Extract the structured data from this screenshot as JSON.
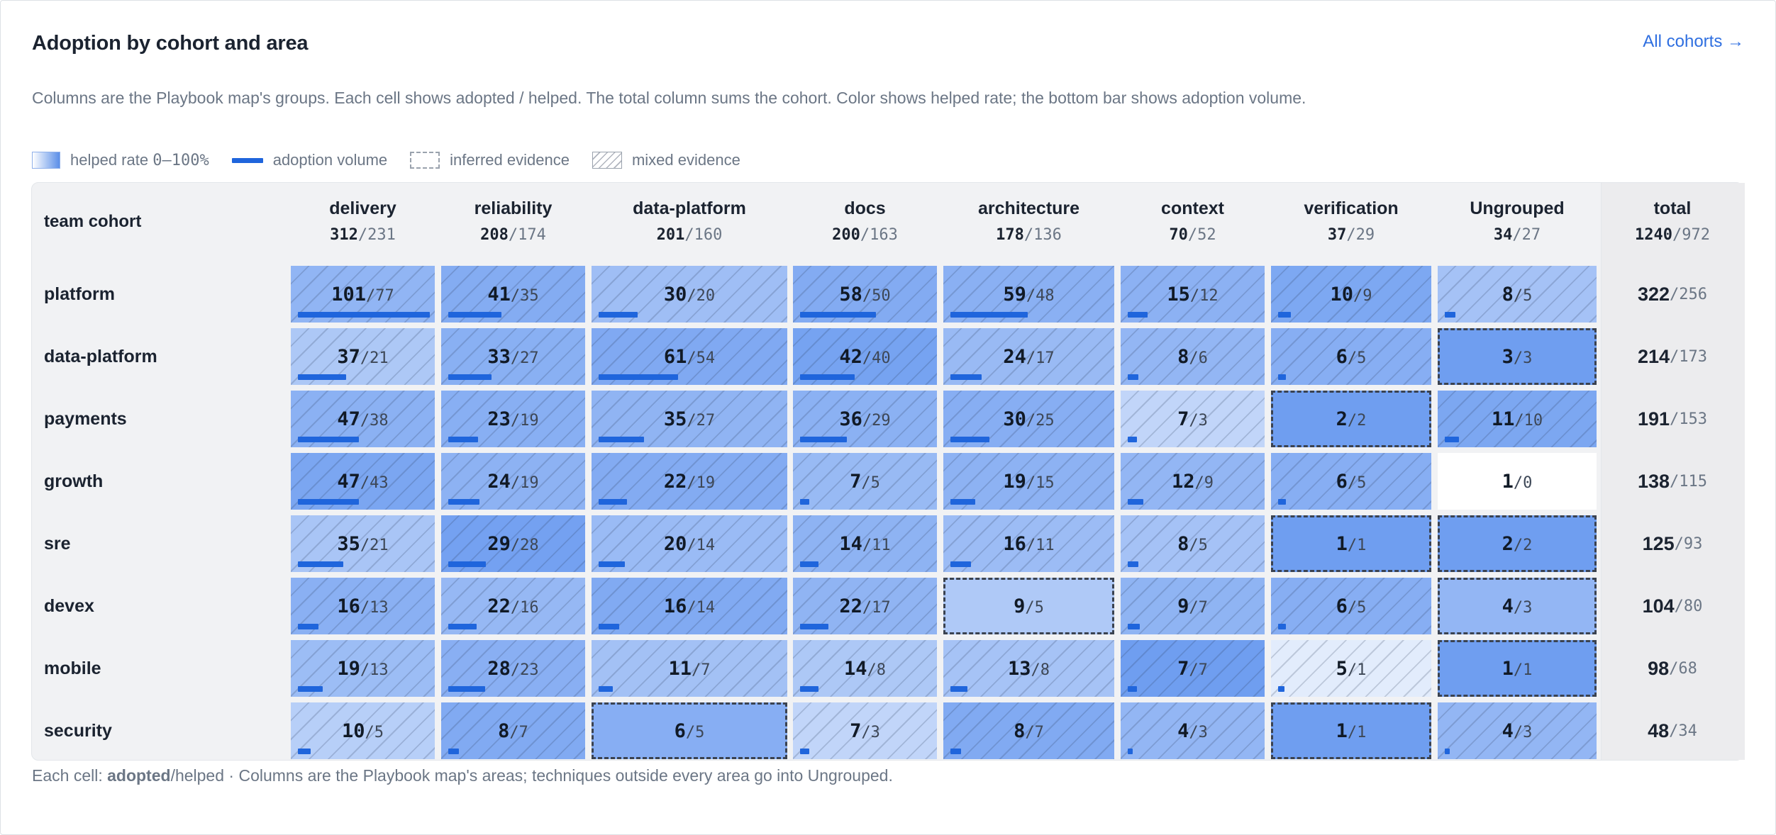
{
  "header": {
    "title": "Adoption by cohort and area",
    "all_link": "All cohorts →",
    "description": "Columns are the Playbook map's groups. Each cell shows adopted / helped. The total column sums the cohort. Color shows helped rate; the bottom bar shows adoption volume."
  },
  "legend": {
    "helped_rate": "helped rate",
    "helped_rate_range": "0–100%",
    "adoption_volume": "adoption volume",
    "inferred": "inferred evidence",
    "mixed": "mixed evidence"
  },
  "colors": {
    "accent": "#1f65dc",
    "link": "#2f6fe0",
    "cell_high": "#6f9ef0",
    "cell_low": "#ffffff"
  },
  "table": {
    "cohort_header": "team cohort",
    "total_header": "total",
    "total_adopted": "1240",
    "total_helped": "/972",
    "columns": [
      {
        "name": "delivery",
        "adopted": "312",
        "helped": "/231"
      },
      {
        "name": "reliability",
        "adopted": "208",
        "helped": "/174"
      },
      {
        "name": "data-platform",
        "adopted": "201",
        "helped": "/160"
      },
      {
        "name": "docs",
        "adopted": "200",
        "helped": "/163"
      },
      {
        "name": "architecture",
        "adopted": "178",
        "helped": "/136"
      },
      {
        "name": "context",
        "adopted": "70",
        "helped": "/52"
      },
      {
        "name": "verification",
        "adopted": "37",
        "helped": "/29"
      },
      {
        "name": "Ungrouped",
        "adopted": "34",
        "helped": "/27"
      }
    ],
    "rows": [
      {
        "cohort": "platform",
        "total_adopted": "322",
        "total_helped": "/256",
        "cells": [
          {
            "adopted": "101",
            "helped": "/77",
            "ev": "mixed"
          },
          {
            "adopted": "41",
            "helped": "/35",
            "ev": "mixed"
          },
          {
            "adopted": "30",
            "helped": "/20",
            "ev": "mixed"
          },
          {
            "adopted": "58",
            "helped": "/50",
            "ev": "mixed"
          },
          {
            "adopted": "59",
            "helped": "/48",
            "ev": "mixed"
          },
          {
            "adopted": "15",
            "helped": "/12",
            "ev": "mixed"
          },
          {
            "adopted": "10",
            "helped": "/9",
            "ev": "mixed"
          },
          {
            "adopted": "8",
            "helped": "/5",
            "ev": "mixed"
          }
        ]
      },
      {
        "cohort": "data-platform",
        "total_adopted": "214",
        "total_helped": "/173",
        "cells": [
          {
            "adopted": "37",
            "helped": "/21",
            "ev": "mixed"
          },
          {
            "adopted": "33",
            "helped": "/27",
            "ev": "mixed"
          },
          {
            "adopted": "61",
            "helped": "/54",
            "ev": "mixed"
          },
          {
            "adopted": "42",
            "helped": "/40",
            "ev": "mixed"
          },
          {
            "adopted": "24",
            "helped": "/17",
            "ev": "mixed"
          },
          {
            "adopted": "8",
            "helped": "/6",
            "ev": "mixed"
          },
          {
            "adopted": "6",
            "helped": "/5",
            "ev": "mixed"
          },
          {
            "adopted": "3",
            "helped": "/3",
            "ev": "inferred"
          }
        ]
      },
      {
        "cohort": "payments",
        "total_adopted": "191",
        "total_helped": "/153",
        "cells": [
          {
            "adopted": "47",
            "helped": "/38",
            "ev": "mixed"
          },
          {
            "adopted": "23",
            "helped": "/19",
            "ev": "mixed"
          },
          {
            "adopted": "35",
            "helped": "/27",
            "ev": "mixed"
          },
          {
            "adopted": "36",
            "helped": "/29",
            "ev": "mixed"
          },
          {
            "adopted": "30",
            "helped": "/25",
            "ev": "mixed"
          },
          {
            "adopted": "7",
            "helped": "/3",
            "ev": "mixed"
          },
          {
            "adopted": "2",
            "helped": "/2",
            "ev": "inferred"
          },
          {
            "adopted": "11",
            "helped": "/10",
            "ev": "mixed"
          }
        ]
      },
      {
        "cohort": "growth",
        "total_adopted": "138",
        "total_helped": "/115",
        "cells": [
          {
            "adopted": "47",
            "helped": "/43",
            "ev": "mixed"
          },
          {
            "adopted": "24",
            "helped": "/19",
            "ev": "mixed"
          },
          {
            "adopted": "22",
            "helped": "/19",
            "ev": "mixed"
          },
          {
            "adopted": "7",
            "helped": "/5",
            "ev": "mixed"
          },
          {
            "adopted": "19",
            "helped": "/15",
            "ev": "mixed"
          },
          {
            "adopted": "12",
            "helped": "/9",
            "ev": "mixed"
          },
          {
            "adopted": "6",
            "helped": "/5",
            "ev": "mixed"
          },
          {
            "adopted": "1",
            "helped": "/0",
            "ev": "direct"
          }
        ]
      },
      {
        "cohort": "sre",
        "total_adopted": "125",
        "total_helped": "/93",
        "cells": [
          {
            "adopted": "35",
            "helped": "/21",
            "ev": "mixed"
          },
          {
            "adopted": "29",
            "helped": "/28",
            "ev": "mixed"
          },
          {
            "adopted": "20",
            "helped": "/14",
            "ev": "mixed"
          },
          {
            "adopted": "14",
            "helped": "/11",
            "ev": "mixed"
          },
          {
            "adopted": "16",
            "helped": "/11",
            "ev": "mixed"
          },
          {
            "adopted": "8",
            "helped": "/5",
            "ev": "mixed"
          },
          {
            "adopted": "1",
            "helped": "/1",
            "ev": "inferred"
          },
          {
            "adopted": "2",
            "helped": "/2",
            "ev": "inferred"
          }
        ]
      },
      {
        "cohort": "devex",
        "total_adopted": "104",
        "total_helped": "/80",
        "cells": [
          {
            "adopted": "16",
            "helped": "/13",
            "ev": "mixed"
          },
          {
            "adopted": "22",
            "helped": "/16",
            "ev": "mixed"
          },
          {
            "adopted": "16",
            "helped": "/14",
            "ev": "mixed"
          },
          {
            "adopted": "22",
            "helped": "/17",
            "ev": "mixed"
          },
          {
            "adopted": "9",
            "helped": "/5",
            "ev": "inferred"
          },
          {
            "adopted": "9",
            "helped": "/7",
            "ev": "mixed"
          },
          {
            "adopted": "6",
            "helped": "/5",
            "ev": "mixed"
          },
          {
            "adopted": "4",
            "helped": "/3",
            "ev": "inferred"
          }
        ]
      },
      {
        "cohort": "mobile",
        "total_adopted": "98",
        "total_helped": "/68",
        "cells": [
          {
            "adopted": "19",
            "helped": "/13",
            "ev": "mixed"
          },
          {
            "adopted": "28",
            "helped": "/23",
            "ev": "mixed"
          },
          {
            "adopted": "11",
            "helped": "/7",
            "ev": "mixed"
          },
          {
            "adopted": "14",
            "helped": "/8",
            "ev": "mixed"
          },
          {
            "adopted": "13",
            "helped": "/8",
            "ev": "mixed"
          },
          {
            "adopted": "7",
            "helped": "/7",
            "ev": "mixed"
          },
          {
            "adopted": "5",
            "helped": "/1",
            "ev": "mixed"
          },
          {
            "adopted": "1",
            "helped": "/1",
            "ev": "inferred"
          }
        ]
      },
      {
        "cohort": "security",
        "total_adopted": "48",
        "total_helped": "/34",
        "cells": [
          {
            "adopted": "10",
            "helped": "/5",
            "ev": "mixed"
          },
          {
            "adopted": "8",
            "helped": "/7",
            "ev": "mixed"
          },
          {
            "adopted": "6",
            "helped": "/5",
            "ev": "inferred"
          },
          {
            "adopted": "7",
            "helped": "/3",
            "ev": "mixed"
          },
          {
            "adopted": "8",
            "helped": "/7",
            "ev": "mixed"
          },
          {
            "adopted": "4",
            "helped": "/3",
            "ev": "mixed"
          },
          {
            "adopted": "1",
            "helped": "/1",
            "ev": "inferred"
          },
          {
            "adopted": "4",
            "helped": "/3",
            "ev": "mixed"
          }
        ]
      }
    ]
  },
  "footnote": {
    "prefix": "Each cell: ",
    "bold": "adopted",
    "rest": "/helped · Columns are the Playbook map's areas; techniques outside every area go into Ungrouped."
  }
}
